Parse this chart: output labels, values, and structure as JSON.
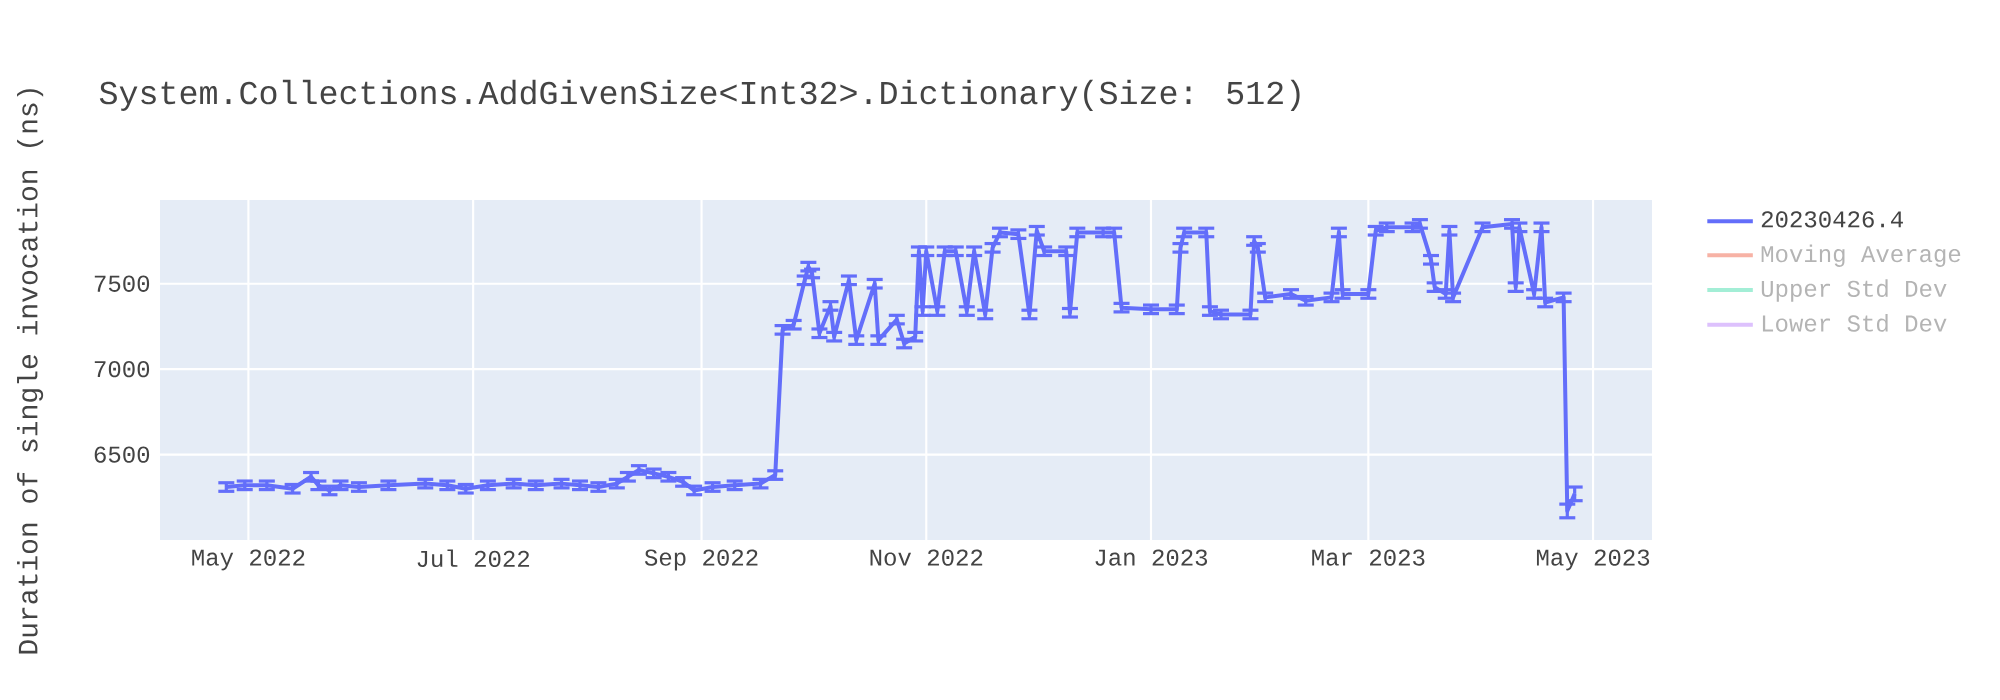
{
  "chart_data": {
    "type": "line",
    "title": "System.Collections.AddGivenSize<Int32>.Dictionary(Size: 512)",
    "ylabel": "Duration of single invocation (ns)",
    "x": [
      "2022-04-25",
      "2022-04-30",
      "2022-05-06",
      "2022-05-13",
      "2022-05-18",
      "2022-05-20",
      "2022-05-23",
      "2022-05-26",
      "2022-05-31",
      "2022-06-08",
      "2022-06-18",
      "2022-06-24",
      "2022-06-29",
      "2022-07-05",
      "2022-07-12",
      "2022-07-18",
      "2022-07-25",
      "2022-07-30",
      "2022-08-04",
      "2022-08-09",
      "2022-08-12",
      "2022-08-15",
      "2022-08-19",
      "2022-08-23",
      "2022-08-27",
      "2022-08-30",
      "2022-09-04",
      "2022-09-10",
      "2022-09-17",
      "2022-09-21",
      "2022-09-23",
      "2022-09-26",
      "2022-09-29",
      "2022-09-30",
      "2022-10-01",
      "2022-10-03",
      "2022-10-06",
      "2022-10-07",
      "2022-10-11",
      "2022-10-13",
      "2022-10-18",
      "2022-10-19",
      "2022-10-24",
      "2022-10-26",
      "2022-10-29",
      "2022-10-30",
      "2022-10-31",
      "2022-11-01",
      "2022-11-04",
      "2022-11-06",
      "2022-11-09",
      "2022-11-12",
      "2022-11-14",
      "2022-11-17",
      "2022-11-19",
      "2022-11-21",
      "2022-11-26",
      "2022-11-29",
      "2022-12-01",
      "2022-12-03",
      "2022-12-09",
      "2022-12-10",
      "2022-12-12",
      "2022-12-19",
      "2022-12-22",
      "2022-12-24",
      "2023-01-01",
      "2023-01-08",
      "2023-01-09",
      "2023-01-10",
      "2023-01-16",
      "2023-01-17",
      "2023-01-20",
      "2023-01-28",
      "2023-01-29",
      "2023-01-30",
      "2023-02-01",
      "2023-02-08",
      "2023-02-12",
      "2023-02-19",
      "2023-02-21",
      "2023-02-22",
      "2023-03-01",
      "2023-03-03",
      "2023-03-06",
      "2023-03-13",
      "2023-03-15",
      "2023-03-18",
      "2023-03-19",
      "2023-03-22",
      "2023-03-23",
      "2023-03-24",
      "2023-04-01",
      "2023-04-09",
      "2023-04-10",
      "2023-04-11",
      "2023-04-15",
      "2023-04-17",
      "2023-04-18",
      "2023-04-23",
      "2023-04-24",
      "2023-04-26"
    ],
    "series": [
      {
        "name": "20230426.4",
        "color": "#636efa",
        "values": [
          6310,
          6320,
          6320,
          6300,
          6370,
          6320,
          6290,
          6320,
          6310,
          6320,
          6330,
          6320,
          6300,
          6320,
          6330,
          6320,
          6330,
          6320,
          6310,
          6330,
          6370,
          6410,
          6390,
          6370,
          6340,
          6290,
          6310,
          6320,
          6330,
          6380,
          7230,
          7260,
          7520,
          7600,
          7560,
          7210,
          7370,
          7190,
          7520,
          7170,
          7500,
          7170,
          7290,
          7150,
          7190,
          7690,
          7340,
          7690,
          7340,
          7690,
          7690,
          7340,
          7690,
          7320,
          7710,
          7800,
          7790,
          7320,
          7810,
          7690,
          7690,
          7330,
          7800,
          7800,
          7800,
          7360,
          7350,
          7350,
          7710,
          7800,
          7800,
          7340,
          7320,
          7320,
          7750,
          7710,
          7420,
          7440,
          7400,
          7420,
          7800,
          7440,
          7440,
          7810,
          7830,
          7830,
          7850,
          7640,
          7480,
          7440,
          7810,
          7420,
          7830,
          7850,
          7480,
          7830,
          7440,
          7830,
          7390,
          7420,
          6170,
          6270
        ],
        "errors": [
          25,
          25,
          25,
          25,
          25,
          25,
          25,
          25,
          25,
          25,
          25,
          25,
          25,
          25,
          25,
          25,
          25,
          25,
          25,
          25,
          25,
          25,
          25,
          25,
          25,
          25,
          25,
          25,
          25,
          25,
          25,
          25,
          25,
          25,
          25,
          25,
          25,
          25,
          25,
          25,
          25,
          25,
          25,
          25,
          25,
          25,
          25,
          25,
          25,
          25,
          25,
          25,
          25,
          25,
          25,
          25,
          25,
          25,
          25,
          25,
          25,
          25,
          25,
          25,
          25,
          25,
          25,
          25,
          25,
          25,
          25,
          25,
          25,
          25,
          25,
          25,
          25,
          25,
          25,
          25,
          25,
          25,
          25,
          25,
          25,
          25,
          25,
          25,
          25,
          25,
          25,
          25,
          25,
          25,
          25,
          25,
          25,
          25,
          25,
          25,
          40,
          40
        ]
      },
      {
        "name": "Moving Average",
        "color": "#f7b2a5",
        "values": [
          null,
          null,
          null,
          null,
          null,
          null,
          null,
          null,
          null,
          null,
          null,
          null,
          null,
          null,
          null,
          null,
          null,
          null,
          null,
          null,
          null,
          null,
          null,
          null,
          null,
          null,
          null,
          null,
          null,
          null,
          null,
          null,
          null,
          null,
          null,
          null,
          null,
          null,
          null,
          null,
          null,
          null,
          null,
          null,
          null,
          null,
          null,
          null,
          null,
          null,
          null,
          null,
          null,
          null,
          null,
          null,
          null,
          null,
          null,
          null,
          null,
          null,
          null,
          null,
          null,
          null,
          null,
          null,
          null,
          null,
          null,
          null,
          null,
          null,
          null,
          null,
          null,
          null,
          null,
          null,
          null,
          null,
          null,
          null,
          null,
          null,
          null,
          null,
          null,
          null,
          null,
          null,
          null,
          null,
          null,
          null,
          null,
          null,
          null,
          null,
          null,
          null
        ]
      },
      {
        "name": "Upper Std Dev",
        "color": "#a3eed6",
        "values": [
          null,
          null,
          null,
          null,
          null,
          null,
          null,
          null,
          null,
          null,
          null,
          null,
          null,
          null,
          null,
          null,
          null,
          null,
          null,
          null,
          null,
          null,
          null,
          null,
          null,
          null,
          null,
          null,
          null,
          null,
          null,
          null,
          null,
          null,
          null,
          null,
          null,
          null,
          null,
          null,
          null,
          null,
          null,
          null,
          null,
          null,
          null,
          null,
          null,
          null,
          null,
          null,
          null,
          null,
          null,
          null,
          null,
          null,
          null,
          null,
          null,
          null,
          null,
          null,
          null,
          null,
          null,
          null,
          null,
          null,
          null,
          null,
          null,
          null,
          null,
          null,
          null,
          null,
          null,
          null,
          null,
          null,
          null,
          null,
          null,
          null,
          null,
          null,
          null,
          null,
          null,
          null,
          null,
          null,
          null,
          null,
          null,
          null,
          null,
          null,
          null,
          null
        ]
      },
      {
        "name": "Lower Std Dev",
        "color": "#ddc1fd",
        "values": [
          null,
          null,
          null,
          null,
          null,
          null,
          null,
          null,
          null,
          null,
          null,
          null,
          null,
          null,
          null,
          null,
          null,
          null,
          null,
          null,
          null,
          null,
          null,
          null,
          null,
          null,
          null,
          null,
          null,
          null,
          null,
          null,
          null,
          null,
          null,
          null,
          null,
          null,
          null,
          null,
          null,
          null,
          null,
          null,
          null,
          null,
          null,
          null,
          null,
          null,
          null,
          null,
          null,
          null,
          null,
          null,
          null,
          null,
          null,
          null,
          null,
          null,
          null,
          null,
          null,
          null,
          null,
          null,
          null,
          null,
          null,
          null,
          null,
          null,
          null,
          null,
          null,
          null,
          null,
          null,
          null,
          null,
          null,
          null,
          null,
          null,
          null,
          null,
          null,
          null,
          null,
          null,
          null,
          null,
          null,
          null,
          null,
          null,
          null,
          null,
          null,
          null
        ]
      }
    ],
    "xlim": [
      "2022-04-07",
      "2023-05-17"
    ],
    "xticks": [
      {
        "value": "2022-05-01",
        "label": "May 2022"
      },
      {
        "value": "2022-07-01",
        "label": "Jul 2022"
      },
      {
        "value": "2022-09-01",
        "label": "Sep 2022"
      },
      {
        "value": "2022-11-01",
        "label": "Nov 2022"
      },
      {
        "value": "2023-01-01",
        "label": "Jan 2023"
      },
      {
        "value": "2023-03-01",
        "label": "Mar 2023"
      },
      {
        "value": "2023-05-01",
        "label": "May 2023"
      }
    ],
    "ylim": [
      6000,
      7990
    ],
    "yticks": [
      6500,
      7000,
      7500
    ],
    "grid": true,
    "legend": "right"
  }
}
